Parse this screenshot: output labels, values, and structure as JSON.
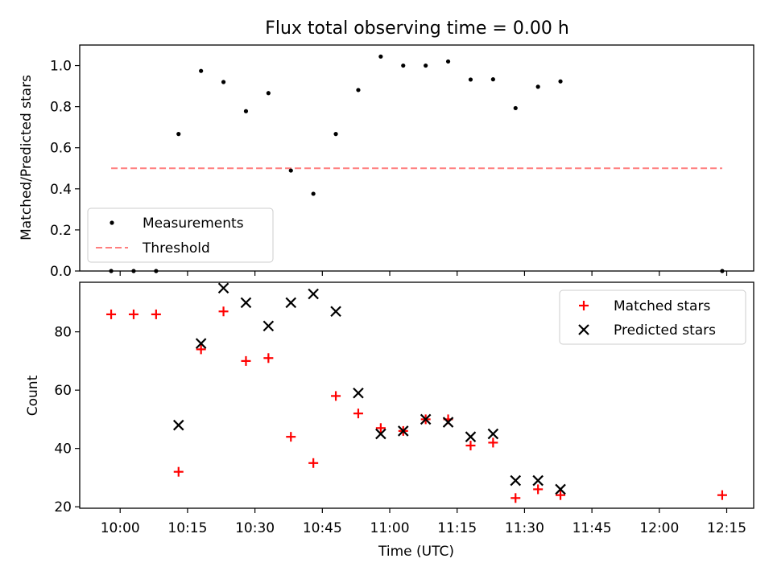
{
  "chart_data": [
    {
      "type": "scatter",
      "title": "Flux total observing time = 0.00 h",
      "xlabel": "",
      "ylabel": "Matched/Predicted stars",
      "ylim": [
        0,
        1.1
      ],
      "yticks": [
        "0.0",
        "0.2",
        "0.4",
        "0.6",
        "0.8",
        "1.0"
      ],
      "ytick_values": [
        0,
        0.2,
        0.4,
        0.6,
        0.8,
        1.0
      ],
      "legend_position": "lower-left",
      "x_shared_with_lower_panel": true,
      "series": [
        {
          "name": "Measurements",
          "marker": "dot",
          "color": "#000000",
          "x": [
            "09:58",
            "10:03",
            "10:08",
            "10:13",
            "10:18",
            "10:23",
            "10:28",
            "10:33",
            "10:38",
            "10:43",
            "10:48",
            "10:53",
            "10:58",
            "11:03",
            "11:08",
            "11:13",
            "11:18",
            "11:23",
            "11:28",
            "11:33",
            "11:38",
            "12:14"
          ],
          "y": [
            0.0,
            0.0,
            0.0,
            0.667,
            0.974,
            0.92,
            0.778,
            0.866,
            0.489,
            0.376,
            0.667,
            0.881,
            1.044,
            1.0,
            1.0,
            1.02,
            0.932,
            0.933,
            0.793,
            0.897,
            0.923,
            0.0
          ]
        },
        {
          "name": "Threshold",
          "style": "dashed",
          "color": "#ff7f7f",
          "x": [
            "09:58",
            "12:14"
          ],
          "y": [
            0.5,
            0.5
          ]
        }
      ]
    },
    {
      "type": "scatter",
      "title": "",
      "xlabel": "Time (UTC)",
      "ylabel": "Count",
      "ylim": [
        19.5,
        97
      ],
      "yticks": [
        "20",
        "40",
        "60",
        "80"
      ],
      "ytick_values": [
        20,
        40,
        60,
        80
      ],
      "xlim": [
        "09:51",
        "12:21"
      ],
      "xticks": [
        "10:00",
        "10:15",
        "10:30",
        "10:45",
        "11:00",
        "11:15",
        "11:30",
        "11:45",
        "12:00",
        "12:15"
      ],
      "legend_position": "upper-right",
      "series": [
        {
          "name": "Matched stars",
          "marker": "plus",
          "color": "#ff0000",
          "x": [
            "09:58",
            "10:03",
            "10:08",
            "10:13",
            "10:18",
            "10:23",
            "10:28",
            "10:33",
            "10:38",
            "10:43",
            "10:48",
            "10:53",
            "10:58",
            "11:03",
            "11:08",
            "11:13",
            "11:18",
            "11:23",
            "11:28",
            "11:33",
            "11:38",
            "12:14"
          ],
          "y": [
            86,
            86,
            86,
            32,
            74,
            87,
            70,
            71,
            44,
            35,
            58,
            52,
            47,
            46,
            50,
            50,
            41,
            42,
            23,
            26,
            24,
            24
          ]
        },
        {
          "name": "Predicted stars",
          "marker": "x",
          "color": "#000000",
          "x": [
            "10:13",
            "10:18",
            "10:23",
            "10:28",
            "10:33",
            "10:38",
            "10:43",
            "10:48",
            "10:53",
            "10:58",
            "11:03",
            "11:08",
            "11:13",
            "11:18",
            "11:23",
            "11:28",
            "11:33",
            "11:38"
          ],
          "y": [
            48,
            76,
            95,
            90,
            82,
            90,
            93,
            87,
            59,
            45,
            46,
            50,
            49,
            44,
            45,
            29,
            29,
            26
          ]
        }
      ]
    }
  ]
}
